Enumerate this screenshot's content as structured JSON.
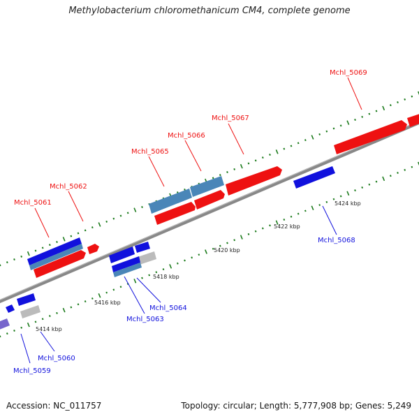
{
  "title": "Methylobacterium chloromethanicum CM4, complete genome",
  "footer": {
    "accession": "Accession: NC_011757",
    "summary": "Topology: circular; Length: 5,777,908 bp; Genes: 5,249"
  },
  "colors": {
    "forward": "#ee1111",
    "reverse": "#1111dd",
    "steel": "#4a86b8",
    "gray": "#bbbbbb",
    "purple": "#7766cc",
    "backbone": "#888888",
    "tick": "#1a7a1a"
  },
  "ticks": [
    "5414 kbp",
    "5416 kbp",
    "5418 kbp",
    "5420 kbp",
    "5422 kbp",
    "5424 kbp"
  ],
  "genes": [
    {
      "label": "Mchl_5059",
      "strand": "reverse"
    },
    {
      "label": "Mchl_5060",
      "strand": "reverse"
    },
    {
      "label": "Mchl_5061",
      "strand": "forward"
    },
    {
      "label": "Mchl_5062",
      "strand": "forward"
    },
    {
      "label": "Mchl_5063",
      "strand": "reverse"
    },
    {
      "label": "Mchl_5064",
      "strand": "reverse"
    },
    {
      "label": "Mchl_5065",
      "strand": "forward"
    },
    {
      "label": "Mchl_5066",
      "strand": "forward"
    },
    {
      "label": "Mchl_5067",
      "strand": "forward"
    },
    {
      "label": "Mchl_5068",
      "strand": "reverse"
    },
    {
      "label": "Mchl_5069",
      "strand": "forward"
    }
  ]
}
